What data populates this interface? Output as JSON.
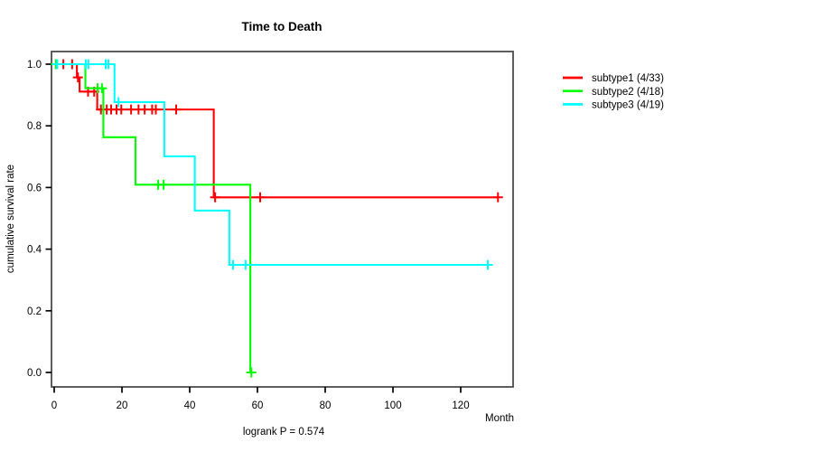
{
  "chart_data": {
    "type": "line",
    "subtype": "kaplan-meier-step-survival",
    "title": "Time to Death",
    "xlabel": "Month",
    "ylabel": "cumulative survival rate",
    "annotation": "logrank P = 0.574",
    "xlim": [
      0,
      135.5
    ],
    "ylim": [
      -0.045,
      1.04
    ],
    "xticks": [
      0,
      20,
      40,
      60,
      80,
      100,
      120
    ],
    "yticks": [
      0.0,
      0.2,
      0.4,
      0.6,
      0.8,
      1.0
    ],
    "grid": false,
    "legend_position": "right-outside",
    "frame_color": "#4d4d4d",
    "tick_color": "#000000",
    "series": [
      {
        "name": "subtype1 (4/33)",
        "color": "#ff0000",
        "steps": [
          [
            0,
            1.0
          ],
          [
            6.7,
            1.0
          ],
          [
            6.7,
            0.957
          ],
          [
            7.5,
            0.957
          ],
          [
            7.5,
            0.911
          ],
          [
            12.7,
            0.911
          ],
          [
            12.7,
            0.853
          ],
          [
            47.1,
            0.853
          ],
          [
            47.1,
            0.568
          ],
          [
            131.3,
            0.568
          ]
        ],
        "censors": [
          [
            0.5,
            1.0
          ],
          [
            2.7,
            1.0
          ],
          [
            5.3,
            1.0
          ],
          [
            7.0,
            0.957
          ],
          [
            10.0,
            0.911
          ],
          [
            11.8,
            0.911
          ],
          [
            13.8,
            0.853
          ],
          [
            15.5,
            0.853
          ],
          [
            16.8,
            0.853
          ],
          [
            18.4,
            0.853
          ],
          [
            19.8,
            0.853
          ],
          [
            22.7,
            0.853
          ],
          [
            24.9,
            0.853
          ],
          [
            26.7,
            0.853
          ],
          [
            28.9,
            0.853
          ],
          [
            30.0,
            0.853
          ],
          [
            36.0,
            0.853
          ],
          [
            47.5,
            0.568
          ],
          [
            60.8,
            0.568
          ],
          [
            131.0,
            0.568
          ]
        ]
      },
      {
        "name": "subtype2 (4/18)",
        "color": "#00ff00",
        "steps": [
          [
            0,
            1.0
          ],
          [
            9.2,
            1.0
          ],
          [
            9.2,
            0.922
          ],
          [
            14.5,
            0.922
          ],
          [
            14.5,
            0.763
          ],
          [
            24.0,
            0.763
          ],
          [
            24.0,
            0.609
          ],
          [
            57.9,
            0.609
          ],
          [
            57.9,
            0.0
          ]
        ],
        "censors": [
          [
            0.5,
            1.0
          ],
          [
            12.8,
            0.922
          ],
          [
            14.1,
            0.922
          ],
          [
            30.7,
            0.609
          ],
          [
            32.3,
            0.609
          ],
          [
            58.2,
            0.0
          ]
        ]
      },
      {
        "name": "subtype3 (4/19)",
        "color": "#00ffff",
        "steps": [
          [
            0,
            1.0
          ],
          [
            17.8,
            1.0
          ],
          [
            17.8,
            0.877
          ],
          [
            32.5,
            0.877
          ],
          [
            32.5,
            0.701
          ],
          [
            41.5,
            0.701
          ],
          [
            41.5,
            0.525
          ],
          [
            51.7,
            0.525
          ],
          [
            51.7,
            0.349
          ],
          [
            128.3,
            0.349
          ]
        ],
        "censors": [
          [
            0.9,
            1.0
          ],
          [
            9.3,
            1.0
          ],
          [
            10.1,
            1.0
          ],
          [
            15.2,
            1.0
          ],
          [
            16.0,
            1.0
          ],
          [
            19.0,
            0.877
          ],
          [
            52.8,
            0.349
          ],
          [
            56.5,
            0.349
          ],
          [
            128.0,
            0.349
          ]
        ]
      }
    ]
  }
}
